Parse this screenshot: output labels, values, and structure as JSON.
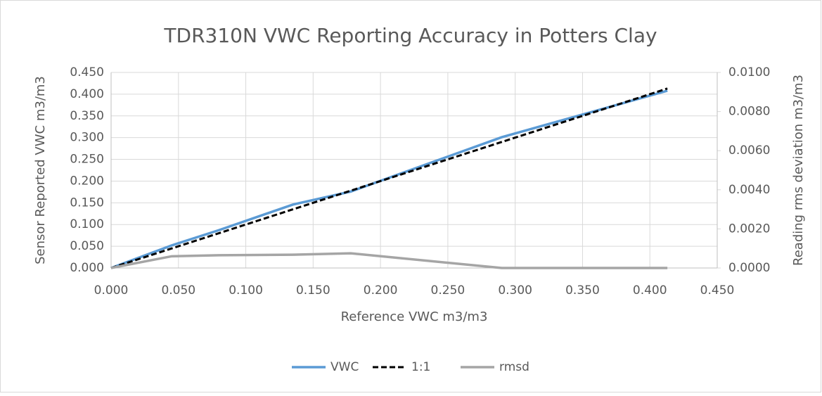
{
  "chart_data": {
    "type": "line",
    "title": "TDR310N VWC Reporting Accuracy in Potters Clay",
    "x_label": "Reference VWC m3/m3",
    "y_label": "Sensor Reported VWC m3/m3",
    "y2_label": "Reading rms deviation m3/m3",
    "x": [
      0,
      0.045,
      0.08,
      0.135,
      0.178,
      0.29,
      0.413
    ],
    "series": [
      {
        "name": "VWC",
        "color": "#5b9bd5",
        "values": [
          0,
          0.052,
          0.087,
          0.146,
          0.176,
          0.301,
          0.408
        ]
      },
      {
        "name": "1:1",
        "color": "#000000",
        "dashed": true,
        "values": [
          0,
          0.045,
          0.08,
          0.135,
          0.178,
          0.29,
          0.413
        ]
      },
      {
        "name": "rmsd",
        "color": "#a5a5a5",
        "axis": "y2",
        "values": [
          0,
          0.0006,
          0.00065,
          0.00068,
          0.00075,
          0,
          0
        ]
      }
    ],
    "xlim": [
      0,
      0.45
    ],
    "xticks": [
      {
        "value": 0,
        "label": "0.000"
      },
      {
        "value": 0.05,
        "label": "0.050"
      },
      {
        "value": 0.1,
        "label": "0.100"
      },
      {
        "value": 0.15,
        "label": "0.150"
      },
      {
        "value": 0.2,
        "label": "0.200"
      },
      {
        "value": 0.25,
        "label": "0.250"
      },
      {
        "value": 0.3,
        "label": "0.300"
      },
      {
        "value": 0.35,
        "label": "0.350"
      },
      {
        "value": 0.4,
        "label": "0.400"
      },
      {
        "value": 0.45,
        "label": "0.450"
      }
    ],
    "ylim": [
      0,
      0.45
    ],
    "yticks": [
      {
        "value": 0,
        "label": "0.000"
      },
      {
        "value": 0.05,
        "label": "0.050"
      },
      {
        "value": 0.1,
        "label": "0.100"
      },
      {
        "value": 0.15,
        "label": "0.150"
      },
      {
        "value": 0.2,
        "label": "0.200"
      },
      {
        "value": 0.25,
        "label": "0.250"
      },
      {
        "value": 0.3,
        "label": "0.300"
      },
      {
        "value": 0.35,
        "label": "0.350"
      },
      {
        "value": 0.4,
        "label": "0.400"
      },
      {
        "value": 0.45,
        "label": "0.450"
      }
    ],
    "y2lim": [
      0,
      0.01
    ],
    "y2ticks": [
      {
        "value": 0,
        "label": "0.0000"
      },
      {
        "value": 0.002,
        "label": "0.0020"
      },
      {
        "value": 0.004,
        "label": "0.0040"
      },
      {
        "value": 0.006,
        "label": "0.0060"
      },
      {
        "value": 0.008,
        "label": "0.0080"
      },
      {
        "value": 0.01,
        "label": "0.0100"
      }
    ],
    "grid": true,
    "legend": "bottom"
  }
}
